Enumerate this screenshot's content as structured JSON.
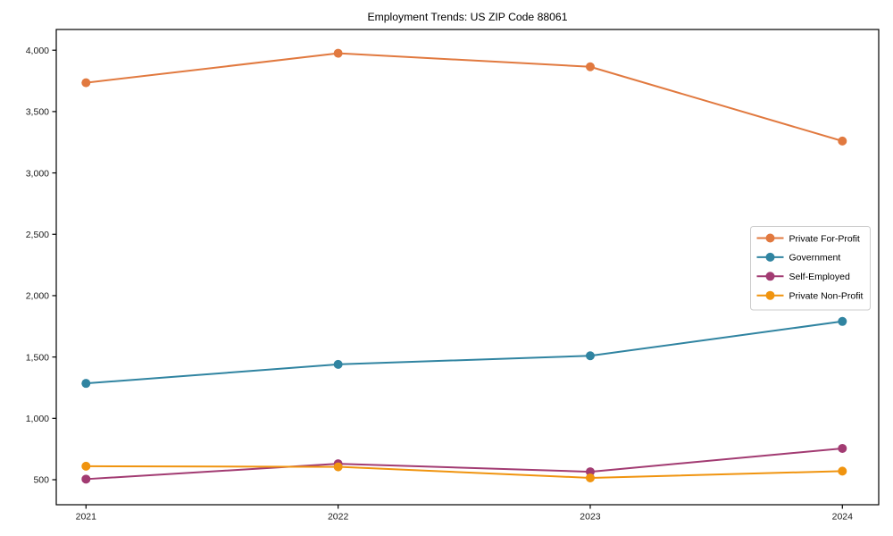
{
  "page": {
    "background": "#ffffff",
    "axis_color": "#000000",
    "tick_label_color": "#1a1a1a"
  },
  "chart_data": {
    "type": "line",
    "title": "Employment Trends: US ZIP Code 88061",
    "x": [
      "2021",
      "2022",
      "2023",
      "2024"
    ],
    "series": [
      {
        "name": "Private For-Profit",
        "color": "#E1793F",
        "values": [
          3735,
          3975,
          3865,
          3260
        ]
      },
      {
        "name": "Government",
        "color": "#3084A1",
        "values": [
          1285,
          1440,
          1510,
          1790
        ]
      },
      {
        "name": "Self-Employed",
        "color": "#A23B72",
        "values": [
          505,
          630,
          565,
          755
        ]
      },
      {
        "name": "Private Non-Profit",
        "color": "#F0940F",
        "values": [
          610,
          605,
          515,
          570
        ]
      }
    ],
    "xlabel": "",
    "ylabel": "",
    "ylim": [
      295,
      4170
    ],
    "yticks": [
      500,
      1000,
      1500,
      2000,
      2500,
      3000,
      3500,
      4000
    ],
    "ytick_labels": [
      "500",
      "1,000",
      "1,500",
      "2,000",
      "2,500",
      "3,000",
      "3,500",
      "4,000"
    ],
    "grid": false,
    "marker": "circle",
    "marker_radius": 5,
    "line_width": 2,
    "legend": {
      "position": "center-right",
      "background": "#ffffff",
      "border_color": "#cccccc"
    }
  }
}
